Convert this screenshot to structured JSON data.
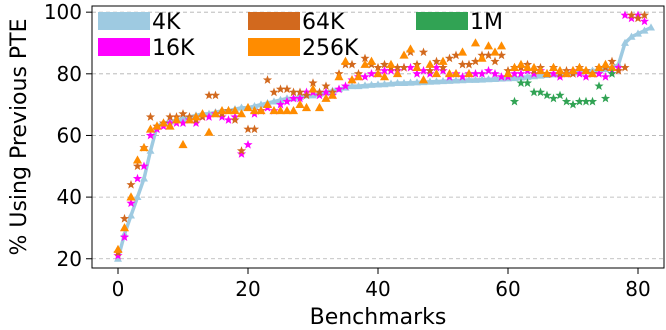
{
  "chart_data": {
    "type": "scatter",
    "xlabel": "Benchmarks",
    "ylabel": "% Using Previous PTE",
    "xlim": [
      -4,
      84
    ],
    "ylim": [
      17,
      102
    ],
    "xticks": [
      0,
      20,
      40,
      60,
      80
    ],
    "yticks": [
      20,
      40,
      60,
      80,
      100
    ],
    "grid": "horizontal-dashed",
    "legend_position": "top",
    "series": [
      {
        "name": "4K",
        "color": "#9ecae1",
        "marker": "triangle-with-line",
        "x": [
          0,
          1,
          2,
          3,
          4,
          5,
          6,
          7,
          8,
          9,
          10,
          11,
          12,
          13,
          14,
          15,
          16,
          17,
          18,
          19,
          20,
          21,
          22,
          23,
          24,
          25,
          26,
          27,
          28,
          29,
          30,
          31,
          32,
          33,
          34,
          35,
          36,
          37,
          38,
          39,
          40,
          41,
          42,
          43,
          44,
          45,
          46,
          47,
          48,
          49,
          50,
          51,
          52,
          53,
          54,
          55,
          56,
          57,
          58,
          59,
          60,
          61,
          62,
          63,
          64,
          65,
          66,
          67,
          68,
          69,
          70,
          71,
          72,
          73,
          74,
          75,
          76,
          77,
          78,
          79,
          80,
          81,
          82
        ],
        "values": [
          20,
          28,
          34,
          40,
          46,
          55,
          63,
          64,
          64.5,
          65,
          65.5,
          66,
          66.5,
          67,
          67,
          67.5,
          68,
          68,
          68.5,
          69,
          69,
          69.5,
          70,
          70.5,
          71,
          71.5,
          72,
          72,
          72.5,
          73,
          73,
          73.5,
          74,
          74.5,
          75,
          75.5,
          76,
          76,
          76.2,
          76.4,
          76.5,
          76.6,
          76.8,
          77,
          77,
          77.1,
          77.2,
          77.3,
          77.4,
          77.5,
          77.6,
          77.7,
          77.8,
          77.9,
          78,
          78,
          78.1,
          78.2,
          78.3,
          78.4,
          78.5,
          78.6,
          78.8,
          79,
          79.2,
          79.4,
          79.6,
          79.8,
          80,
          80.2,
          80.4,
          80.6,
          80.8,
          81,
          81.2,
          81.5,
          82,
          83,
          90,
          92,
          93,
          94,
          95
        ]
      },
      {
        "name": "16K",
        "color": "#ff00ff",
        "marker": "star",
        "x": [
          0,
          1,
          2,
          3,
          4,
          5,
          6,
          7,
          8,
          9,
          10,
          11,
          12,
          13,
          14,
          15,
          16,
          17,
          18,
          19,
          20,
          21,
          22,
          23,
          24,
          25,
          26,
          27,
          28,
          29,
          30,
          31,
          32,
          33,
          34,
          35,
          36,
          37,
          38,
          39,
          40,
          41,
          42,
          43,
          44,
          45,
          46,
          47,
          48,
          49,
          50,
          51,
          52,
          53,
          54,
          55,
          56,
          57,
          58,
          59,
          60,
          61,
          62,
          63,
          64,
          65,
          66,
          67,
          68,
          69,
          70,
          71,
          72,
          73,
          74,
          75,
          76,
          77,
          78,
          79,
          80,
          81
        ],
        "values": [
          21,
          27,
          38,
          46,
          50,
          60,
          62,
          63,
          64,
          64,
          64,
          65,
          64,
          66,
          66,
          67,
          66,
          65,
          66,
          54,
          57,
          67,
          68,
          69,
          68,
          70,
          71,
          72,
          72,
          74,
          74,
          73,
          74,
          73,
          75,
          76,
          78,
          79,
          79,
          80,
          80,
          81,
          81,
          81,
          82,
          82,
          80,
          81,
          80,
          82,
          81,
          79,
          80,
          79,
          80,
          80,
          80,
          81,
          80,
          79,
          79,
          80,
          80,
          81,
          80,
          81,
          80,
          80,
          79,
          80,
          81,
          80,
          79,
          80,
          80,
          79,
          81,
          82,
          99,
          98,
          99,
          97
        ]
      },
      {
        "name": "64K",
        "color": "#d2691e",
        "marker": "star",
        "x": [
          0,
          1,
          2,
          3,
          4,
          5,
          6,
          7,
          8,
          9,
          10,
          11,
          12,
          13,
          14,
          15,
          16,
          17,
          18,
          19,
          20,
          21,
          22,
          23,
          24,
          25,
          26,
          27,
          28,
          29,
          30,
          31,
          32,
          33,
          34,
          35,
          36,
          37,
          38,
          39,
          40,
          41,
          42,
          43,
          44,
          45,
          46,
          47,
          48,
          49,
          50,
          51,
          52,
          53,
          54,
          55,
          56,
          57,
          58,
          59,
          60,
          61,
          62,
          63,
          64,
          65,
          66,
          67,
          68,
          69,
          70,
          71,
          72,
          73,
          74,
          75,
          76,
          77,
          78,
          79,
          80,
          81
        ],
        "values": [
          22,
          33,
          44,
          50,
          56,
          66,
          63,
          64,
          66,
          66,
          67,
          66,
          65,
          66,
          73,
          73,
          67,
          68,
          65,
          55,
          62,
          62,
          68,
          78,
          74,
          75,
          75,
          74,
          74,
          73,
          77,
          74,
          76,
          74,
          80,
          83,
          83,
          80,
          85,
          83,
          82,
          83,
          82,
          82,
          82,
          87,
          83,
          87,
          81,
          84,
          82,
          85,
          86,
          83,
          83,
          84,
          86,
          86,
          84,
          86,
          81,
          82,
          82,
          83,
          81,
          82,
          80,
          82,
          80,
          81,
          80,
          82,
          81,
          80,
          82,
          82,
          84,
          81,
          82,
          99,
          98,
          99
        ]
      },
      {
        "name": "256K",
        "color": "#ff8c00",
        "marker": "triangle",
        "x": [
          0,
          1,
          2,
          3,
          4,
          5,
          6,
          7,
          8,
          9,
          10,
          11,
          12,
          13,
          14,
          15,
          16,
          17,
          18,
          19,
          20,
          21,
          22,
          23,
          24,
          25,
          26,
          27,
          28,
          29,
          30,
          31,
          32,
          33,
          34,
          35,
          36,
          37,
          38,
          39,
          40,
          41,
          42,
          43,
          44,
          45,
          46,
          47,
          48,
          49,
          50,
          51,
          52,
          53,
          54,
          55,
          56,
          57,
          58,
          59,
          60,
          61,
          62,
          63,
          64,
          65,
          66,
          67,
          68,
          69,
          70,
          71,
          72,
          73,
          74,
          75,
          76
        ],
        "values": [
          23,
          30,
          40,
          52,
          56,
          62,
          63,
          64,
          63,
          65,
          57,
          65,
          66,
          67,
          61,
          67,
          68,
          68,
          68,
          67,
          69,
          68,
          68,
          70,
          68,
          68,
          68,
          68,
          70,
          69,
          75,
          69,
          72,
          73,
          79,
          84,
          78,
          79,
          83,
          84,
          80,
          79,
          83,
          80,
          86,
          88,
          82,
          78,
          83,
          80,
          84,
          80,
          80,
          87,
          80,
          90,
          85,
          89,
          87,
          89,
          80,
          82,
          83,
          82,
          82,
          81,
          80,
          82,
          81,
          80,
          81,
          82,
          81,
          80,
          82,
          83,
          82
        ]
      },
      {
        "name": "1M",
        "color": "#31a354",
        "marker": "star",
        "x": [
          61,
          62,
          63,
          64,
          65,
          66,
          67,
          68,
          69,
          70,
          71,
          72,
          73,
          74,
          75,
          76
        ],
        "values": [
          71,
          77,
          77,
          74,
          74,
          73,
          72,
          73,
          71,
          70,
          71,
          71,
          71,
          76,
          72,
          80
        ]
      }
    ]
  }
}
